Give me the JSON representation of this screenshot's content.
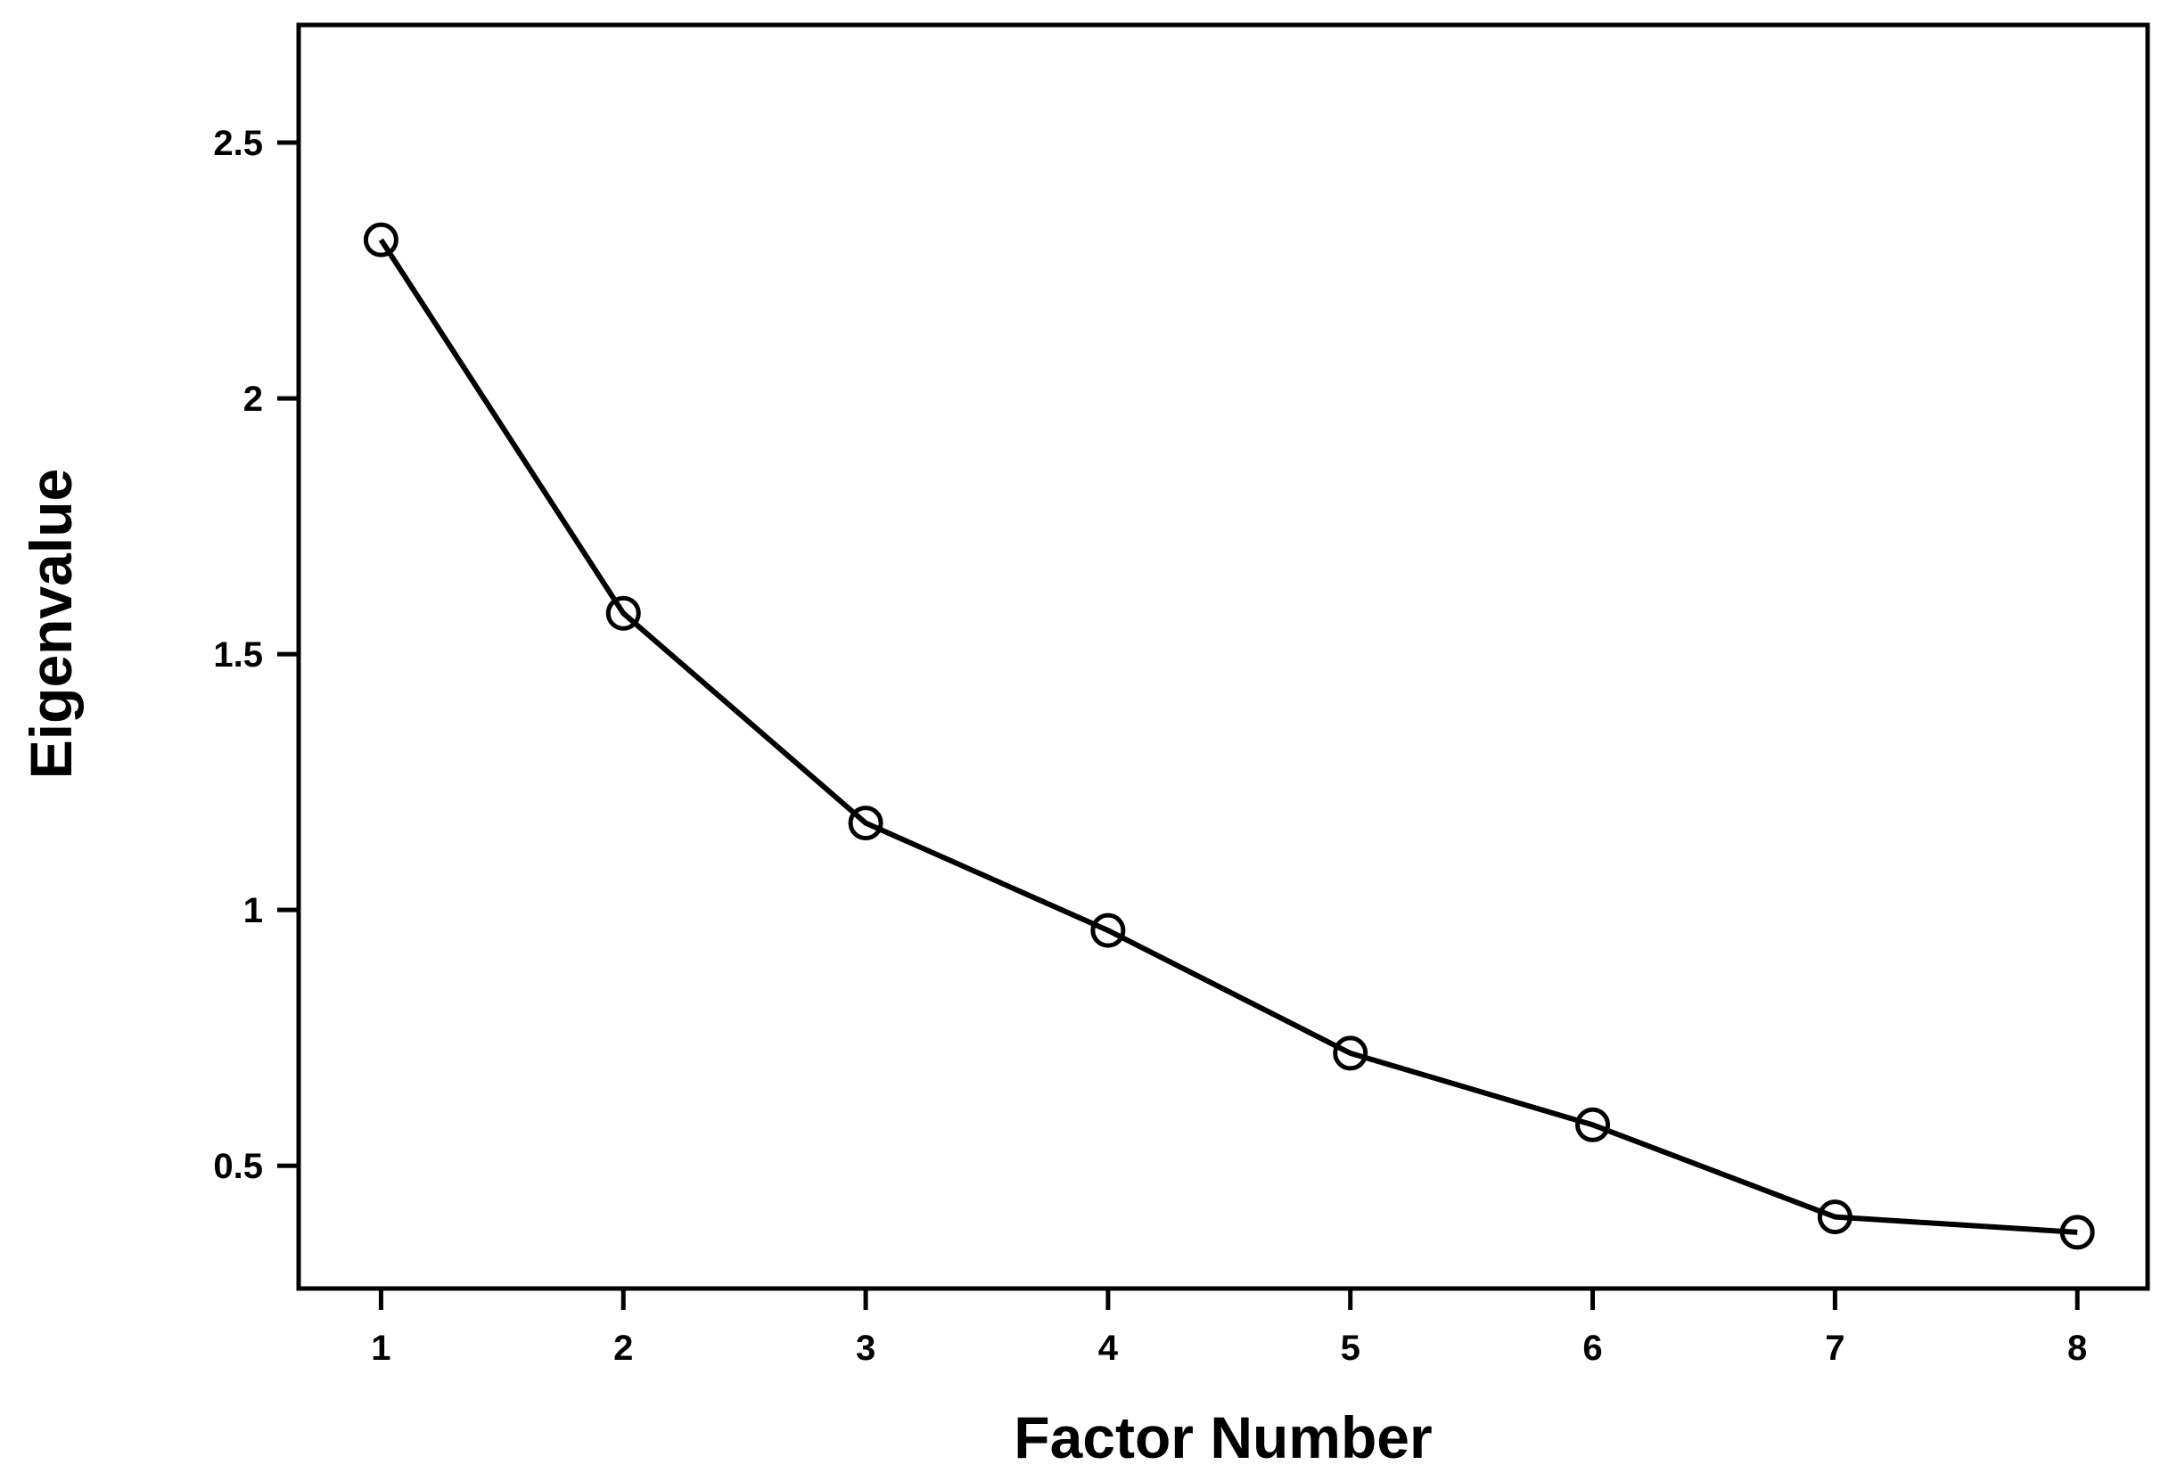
{
  "chart_data": {
    "type": "line",
    "title": "",
    "xlabel": "Factor Number",
    "ylabel": "Eigenvalue",
    "x": [
      1,
      2,
      3,
      4,
      5,
      6,
      7,
      8
    ],
    "series": [
      {
        "values": [
          2.31,
          1.58,
          1.17,
          0.96,
          0.72,
          0.58,
          0.4,
          0.37
        ]
      }
    ],
    "xlim": [
      0.66,
      8.29
    ],
    "ylim": [
      0.26,
      2.73
    ],
    "xticks": [
      "1",
      "2",
      "3",
      "4",
      "5",
      "6",
      "7",
      "8"
    ],
    "yticks": [
      {
        "value": 0.5,
        "label": "0.5"
      },
      {
        "value": 1,
        "label": "1"
      },
      {
        "value": 1.5,
        "label": "1.5"
      },
      {
        "value": 2,
        "label": "2"
      },
      {
        "value": 2.5,
        "label": "2.5"
      }
    ],
    "marker": "open-circle",
    "grid": false,
    "legend": "none",
    "colors": {
      "line": "#000000",
      "frame": "#000000",
      "background": "#ffffff"
    }
  }
}
